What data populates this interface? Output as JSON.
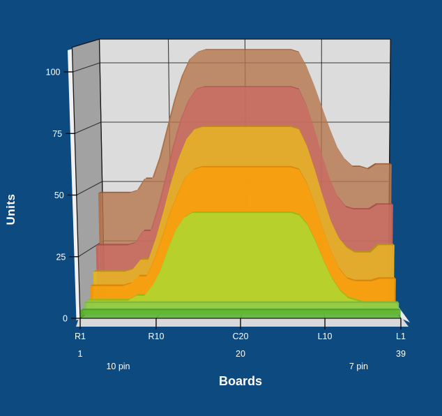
{
  "app": {
    "background_color": "#0D4A80",
    "text_color": "#FFFFFF"
  },
  "chart_data": {
    "type": "area",
    "projection": "3d",
    "title": "",
    "xlabel": "Boards",
    "ylabel": "Units",
    "ylim": [
      0,
      110
    ],
    "y_ticks": [
      0,
      25,
      50,
      75,
      100
    ],
    "x_count": 39,
    "x_categories": [
      {
        "label": "R1",
        "index": 1,
        "sub": "1"
      },
      {
        "label": "R10",
        "index": 10,
        "sub": ""
      },
      {
        "label": "C20",
        "index": 20,
        "sub": "20"
      },
      {
        "label": "L10",
        "index": 30,
        "sub": ""
      },
      {
        "label": "L1",
        "index": 39,
        "sub": "39"
      }
    ],
    "x_group_labels": [
      {
        "label": "10 pin",
        "center_index": 5.5
      },
      {
        "label": "7 pin",
        "center_index": 34
      }
    ],
    "legend": "none",
    "grid": true,
    "series_order": "front-to-back",
    "series": [
      {
        "name": "green-flat",
        "color": "#57B32C",
        "top_color": "#4CA325",
        "values": [
          3,
          3,
          3,
          3,
          3,
          3,
          3,
          3,
          3,
          3,
          3,
          3,
          3,
          3,
          3,
          3,
          3,
          3,
          3,
          3,
          3,
          3,
          3,
          3,
          3,
          3,
          3,
          3,
          3,
          3,
          3,
          3,
          3,
          3,
          3,
          3,
          3,
          3,
          3
        ]
      },
      {
        "name": "light-green-flat",
        "color": "#8CC94F",
        "top_color": "#7BB840",
        "values": [
          5,
          5,
          5,
          5,
          5,
          5,
          5,
          5,
          5,
          5,
          5,
          5,
          5,
          5,
          5,
          5,
          5,
          5,
          5,
          5,
          5,
          5,
          5,
          5,
          5,
          5,
          5,
          5,
          5,
          5,
          5,
          5,
          5,
          5,
          5,
          5,
          5,
          5,
          5
        ]
      },
      {
        "name": "lime",
        "color": "#A9DC32",
        "top_color": "#8DBE18",
        "values": [
          5,
          5,
          5,
          5,
          5,
          5,
          7,
          7,
          11,
          17,
          26,
          34,
          39,
          41,
          41,
          41,
          41,
          41,
          41,
          41,
          41,
          41,
          41,
          41,
          41,
          41,
          40,
          36,
          29,
          21,
          14,
          9,
          6,
          5,
          4,
          4,
          4,
          4,
          4
        ]
      },
      {
        "name": "orange",
        "color": "#F99C0A",
        "top_color": "#D8860B",
        "values": [
          10,
          10,
          10,
          10,
          10,
          11,
          14,
          14,
          21,
          30,
          40,
          48,
          55,
          58,
          59,
          59,
          59,
          59,
          59,
          59,
          59,
          59,
          59,
          59,
          59,
          59,
          58,
          52,
          43,
          33,
          24,
          17,
          13,
          12,
          12,
          12,
          13,
          13,
          13
        ]
      },
      {
        "name": "gold",
        "color": "#EABA21",
        "top_color": "#B8930F",
        "values": [
          15,
          15,
          15,
          15,
          15,
          16,
          20,
          20,
          29,
          40,
          52,
          62,
          70,
          74,
          75,
          75,
          75,
          75,
          75,
          75,
          75,
          75,
          75,
          75,
          75,
          75,
          74,
          67,
          57,
          46,
          36,
          29,
          25,
          23,
          23,
          23,
          26,
          26,
          26
        ]
      },
      {
        "name": "rose",
        "color": "#C96A63",
        "top_color": "#AD4F4E",
        "values": [
          25,
          25,
          25,
          25,
          25,
          26,
          31,
          31,
          41,
          53,
          66,
          77,
          85,
          90,
          91,
          91,
          91,
          91,
          91,
          91,
          91,
          91,
          91,
          91,
          91,
          91,
          90,
          83,
          73,
          62,
          52,
          45,
          41,
          40,
          40,
          40,
          42,
          42,
          42
        ]
      },
      {
        "name": "brown",
        "color": "#B5774E",
        "top_color": "#955931",
        "values": [
          46,
          46,
          46,
          46,
          46,
          47,
          52,
          52,
          61,
          73,
          85,
          95,
          102,
          105,
          106,
          106,
          106,
          106,
          106,
          106,
          106,
          106,
          106,
          106,
          106,
          106,
          105,
          99,
          91,
          82,
          73,
          65,
          60,
          57,
          57,
          56,
          58,
          58,
          58
        ]
      }
    ],
    "walls": {
      "back_wall_color": "#DCDCDC",
      "left_wall_color": "#A2A2A2",
      "floor_color": "#C6C6C6",
      "outer_face_color": "#E9E9E9",
      "grid_color": "#1C1C1C"
    }
  }
}
